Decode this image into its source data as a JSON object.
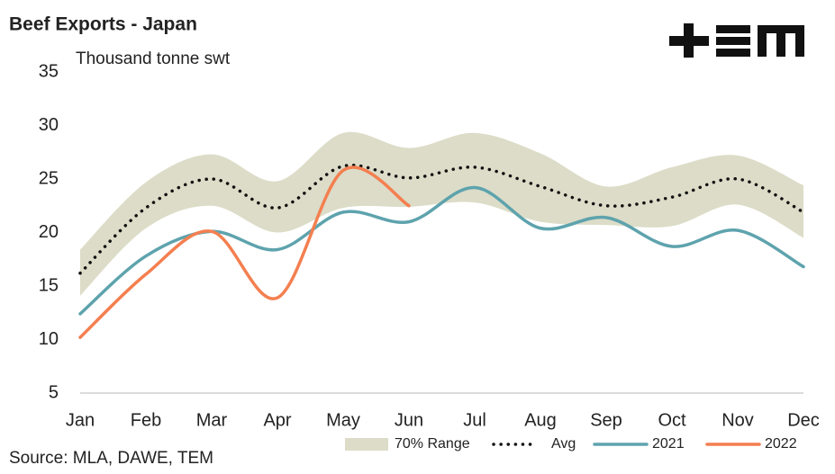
{
  "chart_data": {
    "type": "line",
    "title": "Beef Exports - Japan",
    "y_label": "Thousand tonne swt",
    "source": "Source: MLA, DAWE, TEM",
    "categories": [
      "Jan",
      "Feb",
      "Mar",
      "Apr",
      "May",
      "Jun",
      "Jul",
      "Aug",
      "Sep",
      "Oct",
      "Nov",
      "Dec"
    ],
    "ylim": [
      5,
      35
    ],
    "yticks": [
      5,
      10,
      15,
      20,
      25,
      30,
      35
    ],
    "grid": false,
    "legend": "bottom",
    "series": [
      {
        "name": "70% Range",
        "color": "#dcdcc8",
        "kind": "band",
        "upper": [
          18.4,
          24.7,
          27.3,
          24.8,
          29.3,
          27.9,
          29.3,
          27.4,
          24.3,
          26.1,
          27.2,
          24.4
        ],
        "lower": [
          14.1,
          20.4,
          22.5,
          20.0,
          22.3,
          22.4,
          22.8,
          21.0,
          20.7,
          20.6,
          22.6,
          19.5
        ]
      },
      {
        "name": "Avg",
        "color": "#111111",
        "kind": "dotted",
        "values": [
          16.2,
          22.3,
          25.0,
          22.3,
          26.2,
          25.1,
          26.1,
          24.3,
          22.5,
          23.3,
          25.0,
          21.9
        ]
      },
      {
        "name": "2021",
        "color": "#5ea3ad",
        "kind": "line",
        "values": [
          12.4,
          17.8,
          20.1,
          18.4,
          21.9,
          21.0,
          24.2,
          20.4,
          21.4,
          18.7,
          20.2,
          16.8
        ]
      },
      {
        "name": "2022",
        "color": "#f47f50",
        "kind": "line",
        "values": [
          10.2,
          16.1,
          20.1,
          13.9,
          25.8,
          22.5,
          null,
          null,
          null,
          null,
          null,
          null
        ]
      }
    ]
  }
}
